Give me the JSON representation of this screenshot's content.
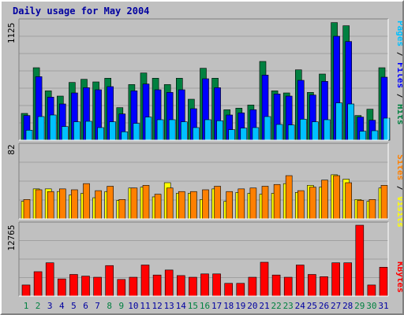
{
  "title": "Daily usage for May 2004",
  "colors": {
    "background": "#c0c0c0",
    "panel": "#c0c0c0",
    "title": "#0000a0",
    "hits": "#008040",
    "files": "#0000ff",
    "pages": "#00c0ff",
    "visits": "#ffff00",
    "sites": "#ff8000",
    "kbytes": "#ff0000",
    "weekend_day": "#008040",
    "weekday": "#0000a0",
    "separator": "#000000"
  },
  "chart_data": [
    {
      "type": "bar",
      "panel": "hits-files-pages",
      "ymax_label": "1125",
      "ylim": [
        0,
        1125
      ],
      "categories": [
        "1",
        "2",
        "3",
        "4",
        "5",
        "6",
        "7",
        "8",
        "9",
        "10",
        "11",
        "12",
        "13",
        "14",
        "15",
        "16",
        "17",
        "18",
        "19",
        "20",
        "21",
        "22",
        "23",
        "24",
        "25",
        "26",
        "27",
        "28",
        "29",
        "30",
        "31"
      ],
      "weekend_days": [
        "1",
        "2",
        "8",
        "9",
        "15",
        "16",
        "22",
        "23",
        "29",
        "30"
      ],
      "series": [
        {
          "name": "Hits",
          "values": [
            255,
            690,
            470,
            420,
            550,
            580,
            555,
            590,
            310,
            530,
            640,
            590,
            530,
            590,
            390,
            685,
            590,
            290,
            305,
            335,
            750,
            470,
            450,
            670,
            455,
            630,
            1120,
            1090,
            235,
            295,
            690
          ]
        },
        {
          "name": "Files",
          "values": [
            235,
            605,
            410,
            345,
            450,
            500,
            480,
            510,
            250,
            470,
            535,
            480,
            455,
            480,
            300,
            585,
            500,
            240,
            260,
            290,
            620,
            440,
            420,
            570,
            430,
            560,
            990,
            940,
            220,
            190,
            600
          ]
        },
        {
          "name": "Pages",
          "values": [
            95,
            225,
            240,
            130,
            175,
            180,
            120,
            175,
            80,
            160,
            220,
            195,
            195,
            175,
            120,
            195,
            185,
            100,
            115,
            120,
            225,
            150,
            145,
            200,
            175,
            195,
            355,
            345,
            85,
            90,
            210
          ]
        }
      ]
    },
    {
      "type": "bar",
      "panel": "visits-sites",
      "ymax_label": "82",
      "ylim": [
        0,
        82
      ],
      "categories": [
        "1",
        "2",
        "3",
        "4",
        "5",
        "6",
        "7",
        "8",
        "9",
        "10",
        "11",
        "12",
        "13",
        "14",
        "15",
        "16",
        "17",
        "18",
        "19",
        "20",
        "21",
        "22",
        "23",
        "24",
        "25",
        "26",
        "27",
        "28",
        "29",
        "30",
        "31"
      ],
      "weekend_days": [
        "1",
        "2",
        "8",
        "9",
        "15",
        "16",
        "22",
        "23",
        "29",
        "30"
      ],
      "series": [
        {
          "name": "Visits",
          "values": [
            20,
            34,
            34,
            31,
            27,
            29,
            24,
            31,
            21,
            35,
            36,
            25,
            41,
            29,
            29,
            22,
            34,
            20,
            30,
            29,
            28,
            29,
            40,
            30,
            38,
            36,
            50,
            45,
            22,
            20,
            35
          ]
        },
        {
          "name": "Sites",
          "values": [
            22,
            33,
            31,
            34,
            33,
            40,
            32,
            37,
            22,
            35,
            38,
            28,
            35,
            31,
            31,
            33,
            37,
            31,
            34,
            35,
            37,
            39,
            49,
            32,
            36,
            44,
            49,
            41,
            21,
            22,
            38
          ]
        }
      ]
    },
    {
      "type": "bar",
      "panel": "kbytes",
      "ymax_label": "12765",
      "ylim": [
        0,
        12765
      ],
      "categories": [
        "1",
        "2",
        "3",
        "4",
        "5",
        "6",
        "7",
        "8",
        "9",
        "10",
        "11",
        "12",
        "13",
        "14",
        "15",
        "16",
        "17",
        "18",
        "19",
        "20",
        "21",
        "22",
        "23",
        "24",
        "25",
        "26",
        "27",
        "28",
        "29",
        "30",
        "31"
      ],
      "weekend_days": [
        "1",
        "2",
        "8",
        "9",
        "15",
        "16",
        "22",
        "23",
        "29",
        "30"
      ],
      "series": [
        {
          "name": "KBytes",
          "values": [
            2000,
            4400,
            6000,
            3100,
            3900,
            3600,
            3400,
            5500,
            3000,
            3400,
            5600,
            3800,
            4700,
            3700,
            3400,
            4000,
            4000,
            2300,
            2300,
            3400,
            6100,
            3800,
            3400,
            5600,
            3900,
            3500,
            6000,
            6000,
            12765,
            2000,
            5200
          ]
        }
      ]
    }
  ],
  "right_labels": {
    "top": {
      "pages": "Pages",
      "sep1": " / ",
      "files": "Files",
      "sep2": " / ",
      "hits": "Hits"
    },
    "middle": {
      "sites": "Sites",
      "sep": " / ",
      "visits": "Visits"
    },
    "bottom": {
      "kbytes": "KBytes"
    }
  }
}
